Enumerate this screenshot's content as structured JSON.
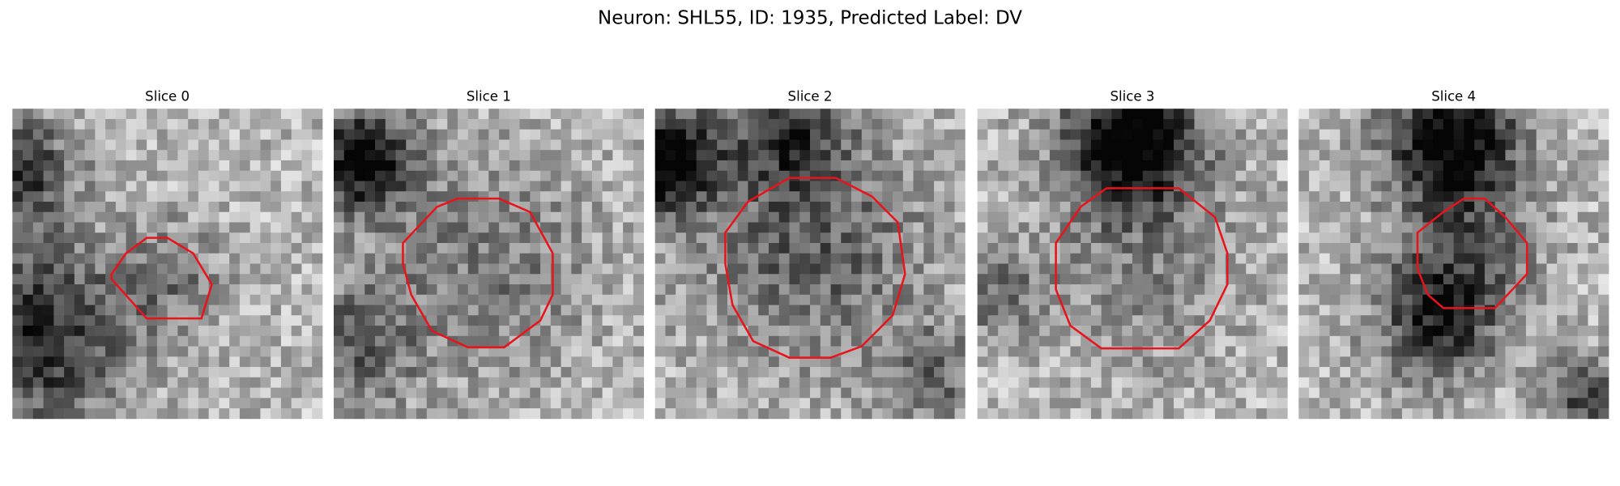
{
  "title": "Neuron: SHL55, ID: 1935, Predicted Label: DV",
  "panels": [
    {
      "title": "Slice 0"
    },
    {
      "title": "Slice 1"
    },
    {
      "title": "Slice 2"
    },
    {
      "title": "Slice 3"
    },
    {
      "title": "Slice 4"
    }
  ]
}
